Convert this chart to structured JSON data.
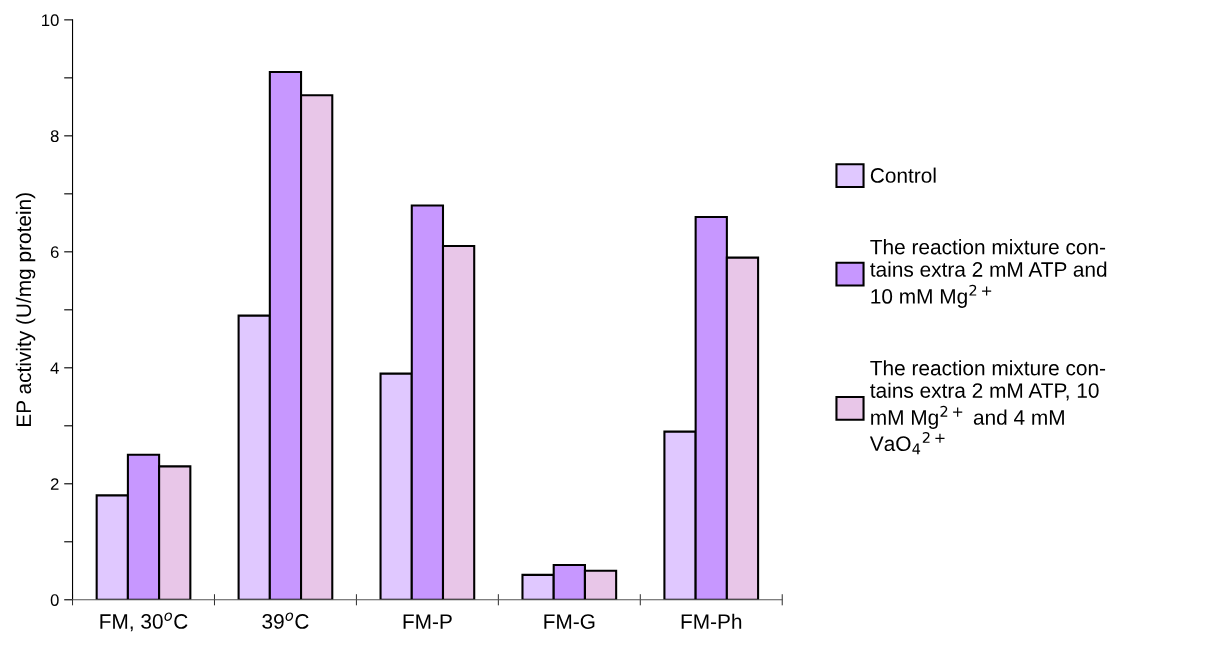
{
  "chart_data": {
    "type": "bar",
    "ylabel": "EP activity (U/mg protein)",
    "categories": [
      "FM, 30$^{o}$C",
      "39$^{o}$C",
      "FM-P",
      "FM-G",
      "FM-Ph"
    ],
    "series": [
      {
        "name": "Control",
        "color": "#e0c8ff",
        "values": [
          1.8,
          4.9,
          3.9,
          0.43,
          2.9
        ]
      },
      {
        "name": "The reaction mixture con-\ntains extra 2 mM ATP and\n10 mM Mg$^{2+}$",
        "color": "#c797ff",
        "values": [
          2.5,
          9.1,
          6.8,
          0.6,
          6.6
        ]
      },
      {
        "name": "The reaction mixture con-\ntains extra 2 mM ATP, 10\nmM Mg$^{2+}$ and 4 mM\nVaO$_{4}$$^{2+}$",
        "color": "#e8c6e8",
        "values": [
          2.3,
          8.7,
          6.1,
          0.5,
          5.9
        ]
      }
    ],
    "ylim": [
      0,
      10
    ],
    "yticks": [
      0,
      {
        "value": 1,
        "label": null
      },
      2,
      {
        "value": 3,
        "label": null
      },
      4,
      {
        "value": 5,
        "label": null
      },
      6,
      {
        "value": 7,
        "label": null
      },
      8,
      {
        "value": 9,
        "label": null
      },
      10
    ],
    "grid": false,
    "legend": "right"
  }
}
